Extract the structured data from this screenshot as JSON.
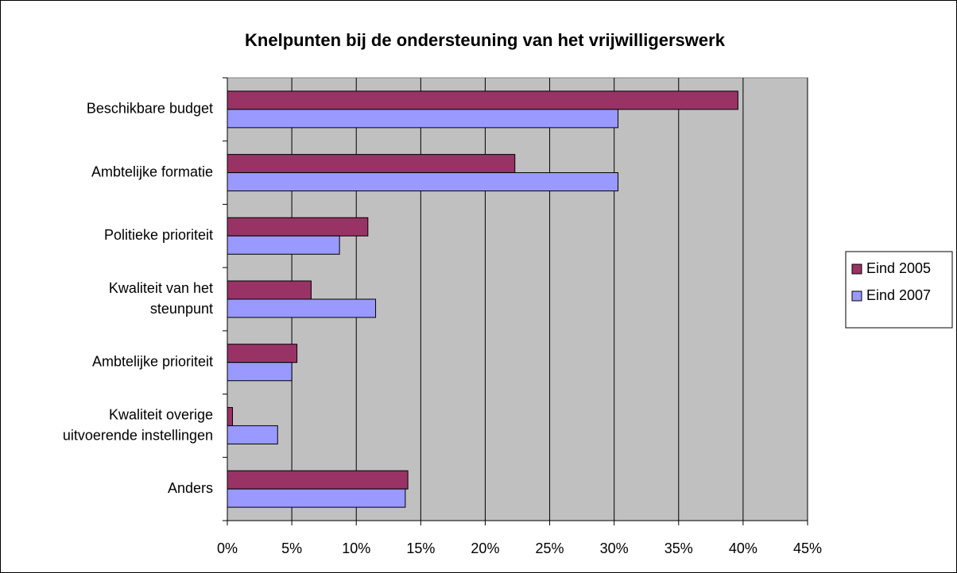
{
  "chart_data": {
    "type": "bar",
    "orientation": "horizontal",
    "title": "Knelpunten bij de ondersteuning van het vrijwilligerswerk",
    "categories": [
      "Beschikbare budget",
      "Ambtelijke formatie",
      "Politieke prioriteit",
      "Kwaliteit van het\nsteunpunt",
      "Ambtelijke prioriteit",
      "Kwaliteit overige\nuitvoerende instellingen",
      "Anders"
    ],
    "series": [
      {
        "name": "Eind 2005",
        "color": "#993366",
        "values": [
          39.6,
          22.3,
          10.9,
          6.5,
          5.4,
          0.4,
          14.0
        ]
      },
      {
        "name": "Eind 2007",
        "color": "#9999ff",
        "values": [
          30.3,
          30.3,
          8.7,
          11.5,
          5.0,
          3.9,
          13.8
        ]
      }
    ],
    "xlim": [
      0,
      45
    ],
    "xticks": [
      {
        "value": 0,
        "label": "0%"
      },
      {
        "value": 5,
        "label": "5%"
      },
      {
        "value": 10,
        "label": "10%"
      },
      {
        "value": 15,
        "label": "15%"
      },
      {
        "value": 20,
        "label": "20%"
      },
      {
        "value": 25,
        "label": "25%"
      },
      {
        "value": 30,
        "label": "30%"
      },
      {
        "value": 35,
        "label": "35%"
      },
      {
        "value": 40,
        "label": "40%"
      },
      {
        "value": 45,
        "label": "45%"
      }
    ],
    "grid": true,
    "legend": "right"
  }
}
